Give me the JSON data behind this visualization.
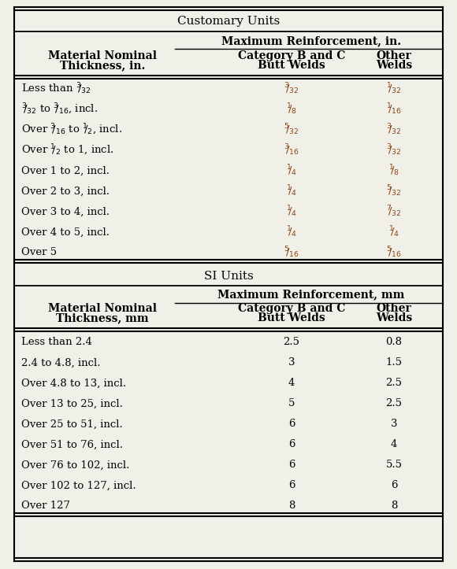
{
  "bg_color": "#f0f0e8",
  "fraction_color": "#8B4513",
  "black": "#000000",
  "customary_title": "Customary Units",
  "customary_reinf": "Maximum Reinforcement, in.",
  "si_title": "SI Units",
  "si_reinf": "Maximum Reinforcement, mm",
  "col1_hdr": [
    "Material Nominal",
    "Thickness, in."
  ],
  "col2_hdr": [
    "Category B and C",
    "Butt Welds"
  ],
  "col3_hdr": [
    "Other",
    "Welds"
  ],
  "col1_hdr_mm": [
    "Material Nominal",
    "Thickness, mm"
  ],
  "customary_rows": [
    [
      "Less than $^3\\!\\!/_{32}$",
      "$^3\\!\\!/_{32}$",
      "$^1\\!\\!/_{32}$"
    ],
    [
      "$^3\\!\\!/_{32}$ to $^3\\!\\!/_{16}$, incl.",
      "$^1\\!\\!/_{8}$",
      "$^1\\!\\!/_{16}$"
    ],
    [
      "Over $^3\\!\\!/_{16}$ to $^1\\!\\!/_{2}$, incl.",
      "$^5\\!\\!/_{32}$",
      "$^3\\!\\!/_{32}$"
    ],
    [
      "Over $^1\\!\\!/_{2}$ to 1, incl.",
      "$^3\\!\\!/_{16}$",
      "$^3\\!\\!/_{32}$"
    ],
    [
      "Over 1 to 2, incl.",
      "$^1\\!\\!/_{4}$",
      "$^1\\!\\!/_{8}$"
    ],
    [
      "Over 2 to 3, incl.",
      "$^1\\!\\!/_{4}$",
      "$^5\\!\\!/_{32}$"
    ],
    [
      "Over 3 to 4, incl.",
      "$^1\\!\\!/_{4}$",
      "$^7\\!\\!/_{32}$"
    ],
    [
      "Over 4 to 5, incl.",
      "$^1\\!\\!/_{4}$",
      "$^1\\!\\!/_{4}$"
    ],
    [
      "Over 5",
      "$^5\\!\\!/_{16}$",
      "$^5\\!\\!/_{16}$"
    ]
  ],
  "si_rows": [
    [
      "Less than 2.4",
      "2.5",
      "0.8"
    ],
    [
      "2.4 to 4.8, incl.",
      "3",
      "1.5"
    ],
    [
      "Over 4.8 to 13, incl.",
      "4",
      "2.5"
    ],
    [
      "Over 13 to 25, incl.",
      "5",
      "2.5"
    ],
    [
      "Over 25 to 51, incl.",
      "6",
      "3"
    ],
    [
      "Over 51 to 76, incl.",
      "6",
      "4"
    ],
    [
      "Over 76 to 102, incl.",
      "6",
      "5.5"
    ],
    [
      "Over 102 to 127, incl.",
      "6",
      "6"
    ],
    [
      "Over 127",
      "8",
      "8"
    ]
  ]
}
